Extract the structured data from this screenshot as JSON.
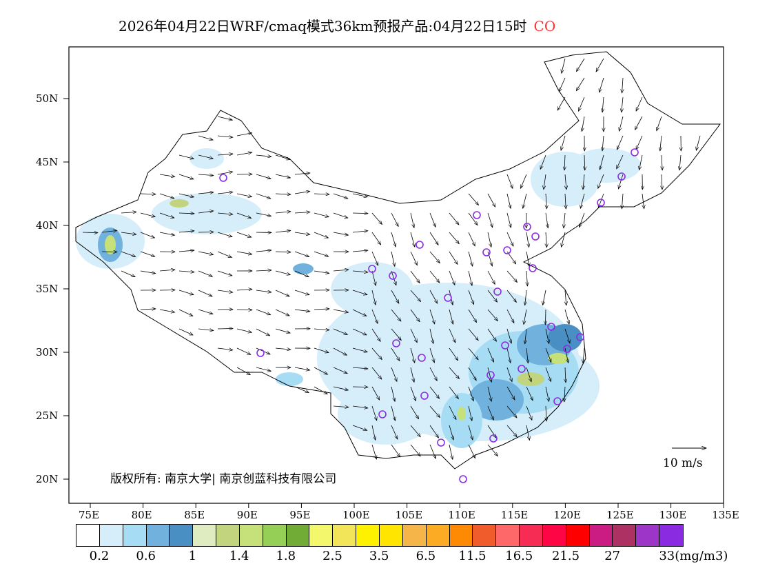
{
  "title": {
    "main": "2026年04月22日WRF/cmaq模式36km预报产品:04月22日15时",
    "species": "CO"
  },
  "lat_ticks": [
    "50N",
    "45N",
    "40N",
    "35N",
    "30N",
    "25N",
    "20N"
  ],
  "lon_ticks": [
    "75E",
    "80E",
    "85E",
    "90E",
    "95E",
    "100E",
    "105E",
    "110E",
    "115E",
    "120E",
    "125E",
    "130E",
    "135E"
  ],
  "copyright": "版权所有: 南京大学| 南京创蓝科技有限公司",
  "wind_scale": "10 m/s",
  "colorbar": {
    "colors": [
      "#ffffff",
      "#d6eefa",
      "#a7dcf5",
      "#70b2dd",
      "#4a8fc4",
      "#dfebc0",
      "#c2d57e",
      "#c6e07a",
      "#95cf55",
      "#70ac36",
      "#f3f76c",
      "#f3e55a",
      "#fff200",
      "#ffe500",
      "#f6b548",
      "#fcab24",
      "#fe8a04",
      "#f05c2b",
      "#ff6868",
      "#f72c55",
      "#fe0645",
      "#fe0000",
      "#ca1c82",
      "#ae3163",
      "#9c35c8",
      "#8a2be2"
    ],
    "labels": [
      "0.2",
      "0.6",
      "1",
      "1.4",
      "1.8",
      "2.5",
      "3.5",
      "6.5",
      "11.5",
      "16.5",
      "21.5",
      "27",
      "33(mg/m3)"
    ]
  }
}
